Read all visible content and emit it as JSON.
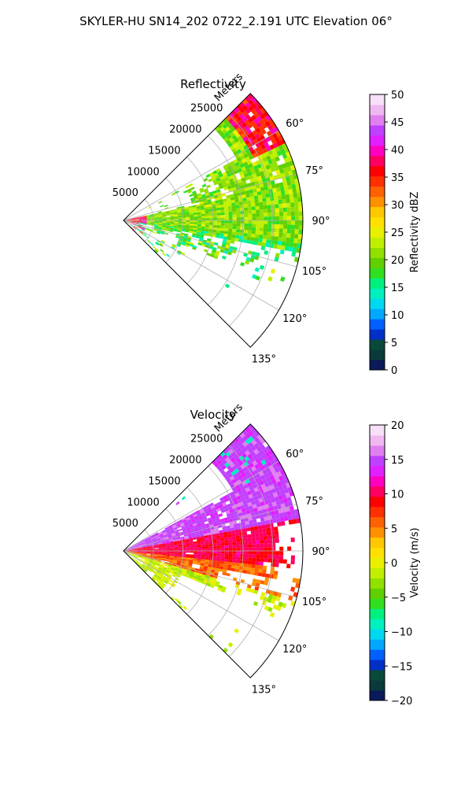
{
  "figure": {
    "title": "SKYLER-HU  SN14_202  0722_2.191 UTC Elevation 06°"
  },
  "chart_data": [
    {
      "type": "heatmap",
      "panel": "polar-sector",
      "title": "Reflectivity",
      "radial_label": "Meters",
      "radial_ticks": [
        "5000",
        "10000",
        "15000",
        "20000",
        "25000"
      ],
      "radial_max": 30000,
      "theta_range_deg": [
        45,
        135
      ],
      "angle_ticks": [
        "60°",
        "75°",
        "90°",
        "105°",
        "120°",
        "135°"
      ],
      "angle_tick_values": [
        60,
        75,
        90,
        105,
        120,
        135
      ],
      "grid": true,
      "colorbar": {
        "label": "Reflectivity dBZ",
        "range": [
          0,
          50
        ],
        "ticks": [
          "0",
          "5",
          "10",
          "15",
          "20",
          "25",
          "30",
          "35",
          "40",
          "45",
          "50"
        ],
        "colors": [
          "#0a1a5a",
          "#0b3a3a",
          "#0a4a3a",
          "#0030c8",
          "#0060ff",
          "#00a8ff",
          "#00d8f0",
          "#00f0c0",
          "#00f080",
          "#30e020",
          "#60d000",
          "#90e000",
          "#c0f000",
          "#e8f000",
          "#ffe000",
          "#ffc800",
          "#ff9000",
          "#ff6000",
          "#ff3000",
          "#ff0000",
          "#ff0060",
          "#ff00c0",
          "#e020ff",
          "#c040ff",
          "#e080f0",
          "#f0b8f0",
          "#f8e0f8"
        ]
      }
    },
    {
      "type": "heatmap",
      "panel": "polar-sector",
      "title": "Velocity",
      "radial_label": "Meters",
      "radial_ticks": [
        "5000",
        "10000",
        "15000",
        "20000",
        "25000"
      ],
      "radial_max": 30000,
      "theta_range_deg": [
        45,
        135
      ],
      "angle_ticks": [
        "60°",
        "75°",
        "90°",
        "105°",
        "120°",
        "135°"
      ],
      "angle_tick_values": [
        60,
        75,
        90,
        105,
        120,
        135
      ],
      "grid": true,
      "colorbar": {
        "label": "Velocity (m/s)",
        "range": [
          -20,
          20
        ],
        "ticks": [
          "−20",
          "−15",
          "−10",
          "−5",
          "0",
          "5",
          "10",
          "15",
          "20"
        ],
        "colors": [
          "#0a1a5a",
          "#0b3a3a",
          "#0a4a3a",
          "#0030c8",
          "#0060ff",
          "#00a8ff",
          "#00d8f0",
          "#00f0c0",
          "#00f080",
          "#30e020",
          "#60d000",
          "#90e000",
          "#c0f000",
          "#e8f000",
          "#ffe000",
          "#ffc800",
          "#ff9000",
          "#ff6000",
          "#ff3000",
          "#ff0000",
          "#ff0060",
          "#ff00c0",
          "#e020ff",
          "#c040ff",
          "#e080f0",
          "#f0b8f0",
          "#f8e0f8"
        ]
      }
    }
  ]
}
